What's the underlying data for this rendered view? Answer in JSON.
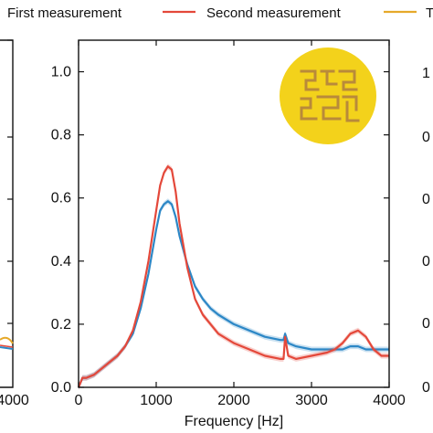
{
  "chart_data": {
    "type": "line",
    "title": "",
    "xlabel": "Frequency [Hz]",
    "ylabel": "",
    "xlim": [
      0,
      4000
    ],
    "ylim": [
      0,
      1.1
    ],
    "x_ticks": [
      "0",
      "1000",
      "2000",
      "3000",
      "4000"
    ],
    "y_ticks": [
      "0.0",
      "0.2",
      "0.4",
      "0.6",
      "0.8",
      "1.0"
    ],
    "grid": false,
    "legend_position": "top",
    "legend": [
      {
        "name": "First measurement",
        "color": "#2c87c6"
      },
      {
        "name": "Second measurement",
        "color": "#e4483a"
      },
      {
        "name": "T",
        "color": "#e6a92a"
      }
    ],
    "series": [
      {
        "name": "First measurement",
        "color": "#2c87c6",
        "x": [
          0,
          50,
          100,
          200,
          300,
          400,
          500,
          600,
          700,
          800,
          900,
          1000,
          1050,
          1100,
          1150,
          1200,
          1250,
          1300,
          1400,
          1500,
          1600,
          1700,
          1800,
          2000,
          2200,
          2400,
          2600,
          2640,
          2660,
          2700,
          2800,
          3000,
          3200,
          3400,
          3500,
          3600,
          3700,
          3800,
          3900,
          4000
        ],
        "values": [
          0.0,
          0.03,
          0.03,
          0.04,
          0.06,
          0.08,
          0.1,
          0.13,
          0.17,
          0.25,
          0.36,
          0.5,
          0.56,
          0.58,
          0.59,
          0.58,
          0.54,
          0.48,
          0.39,
          0.32,
          0.28,
          0.25,
          0.23,
          0.2,
          0.18,
          0.16,
          0.15,
          0.15,
          0.17,
          0.14,
          0.13,
          0.12,
          0.12,
          0.12,
          0.13,
          0.13,
          0.12,
          0.12,
          0.12,
          0.12
        ]
      },
      {
        "name": "Second measurement",
        "color": "#e4483a",
        "x": [
          0,
          50,
          100,
          200,
          300,
          400,
          500,
          600,
          700,
          800,
          900,
          1000,
          1050,
          1100,
          1150,
          1200,
          1250,
          1300,
          1400,
          1500,
          1600,
          1700,
          1800,
          2000,
          2200,
          2400,
          2600,
          2640,
          2660,
          2700,
          2800,
          3000,
          3200,
          3300,
          3400,
          3500,
          3600,
          3700,
          3800,
          3900,
          4000
        ],
        "values": [
          0.0,
          0.03,
          0.03,
          0.04,
          0.06,
          0.08,
          0.1,
          0.13,
          0.18,
          0.27,
          0.4,
          0.56,
          0.64,
          0.68,
          0.7,
          0.69,
          0.62,
          0.52,
          0.38,
          0.28,
          0.23,
          0.2,
          0.17,
          0.14,
          0.12,
          0.1,
          0.09,
          0.09,
          0.16,
          0.1,
          0.09,
          0.1,
          0.11,
          0.12,
          0.14,
          0.17,
          0.18,
          0.16,
          0.12,
          0.1,
          0.1
        ]
      }
    ]
  }
}
